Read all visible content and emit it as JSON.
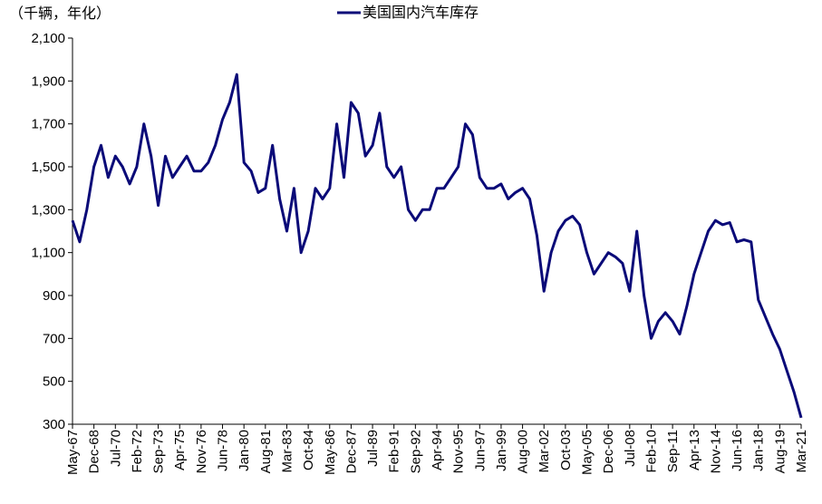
{
  "chart_data": {
    "type": "line",
    "unit_note": "（千辆，年化）",
    "categories": [
      "May-67",
      null,
      null,
      "Dec-68",
      null,
      null,
      "Jul-70",
      null,
      null,
      "Feb-72",
      null,
      null,
      "Sep-73",
      null,
      null,
      "Apr-75",
      null,
      null,
      "Nov-76",
      null,
      null,
      "Jun-78",
      null,
      null,
      "Jan-80",
      null,
      null,
      "Aug-81",
      null,
      null,
      "Mar-83",
      null,
      null,
      "Oct-84",
      null,
      null,
      "May-86",
      null,
      null,
      "Dec-87",
      null,
      null,
      "Jul-89",
      null,
      null,
      "Feb-91",
      null,
      null,
      "Sep-92",
      null,
      null,
      "Apr-94",
      null,
      null,
      "Nov-95",
      null,
      null,
      "Jun-97",
      null,
      null,
      "Jan-99",
      null,
      null,
      "Aug-00",
      null,
      null,
      "Mar-02",
      null,
      null,
      "Oct-03",
      null,
      null,
      "May-05",
      null,
      null,
      "Dec-06",
      null,
      null,
      "Jul-08",
      null,
      null,
      "Feb-10",
      null,
      null,
      "Sep-11",
      null,
      null,
      "Apr-13",
      null,
      null,
      "Nov-14",
      null,
      null,
      "Jun-16",
      null,
      null,
      "Jan-18",
      null,
      null,
      "Aug-19",
      null,
      null,
      "Mar-21"
    ],
    "series": [
      {
        "name": "美国国内汽车库存",
        "color": "#0a0a78",
        "values": [
          1250,
          1150,
          1300,
          1500,
          1600,
          1450,
          1550,
          1500,
          1420,
          1500,
          1700,
          1550,
          1320,
          1550,
          1450,
          1500,
          1550,
          1480,
          1480,
          1520,
          1600,
          1720,
          1800,
          1930,
          1520,
          1480,
          1380,
          1400,
          1600,
          1350,
          1200,
          1400,
          1100,
          1200,
          1400,
          1350,
          1400,
          1700,
          1450,
          1800,
          1750,
          1550,
          1600,
          1750,
          1500,
          1450,
          1500,
          1300,
          1250,
          1300,
          1300,
          1400,
          1400,
          1450,
          1500,
          1700,
          1650,
          1450,
          1400,
          1400,
          1420,
          1350,
          1380,
          1400,
          1350,
          1180,
          920,
          1100,
          1200,
          1250,
          1270,
          1230,
          1100,
          1000,
          1050,
          1100,
          1080,
          1050,
          920,
          1200,
          900,
          700,
          780,
          820,
          780,
          720,
          850,
          1000,
          1100,
          1200,
          1250,
          1230,
          1240,
          1150,
          1160,
          1150,
          880,
          800,
          720,
          650,
          550,
          450,
          330
        ]
      }
    ],
    "ylim": [
      300,
      2100
    ],
    "yticks": [
      {
        "value": 300,
        "label": "300"
      },
      {
        "value": 500,
        "label": "500"
      },
      {
        "value": 700,
        "label": "700"
      },
      {
        "value": 900,
        "label": "900"
      },
      {
        "value": 1100,
        "label": "1,100"
      },
      {
        "value": 1300,
        "label": "1,300"
      },
      {
        "value": 1500,
        "label": "1,500"
      },
      {
        "value": 1700,
        "label": "1,700"
      },
      {
        "value": 1900,
        "label": "1,900"
      },
      {
        "value": 2100,
        "label": "2,100"
      }
    ]
  }
}
